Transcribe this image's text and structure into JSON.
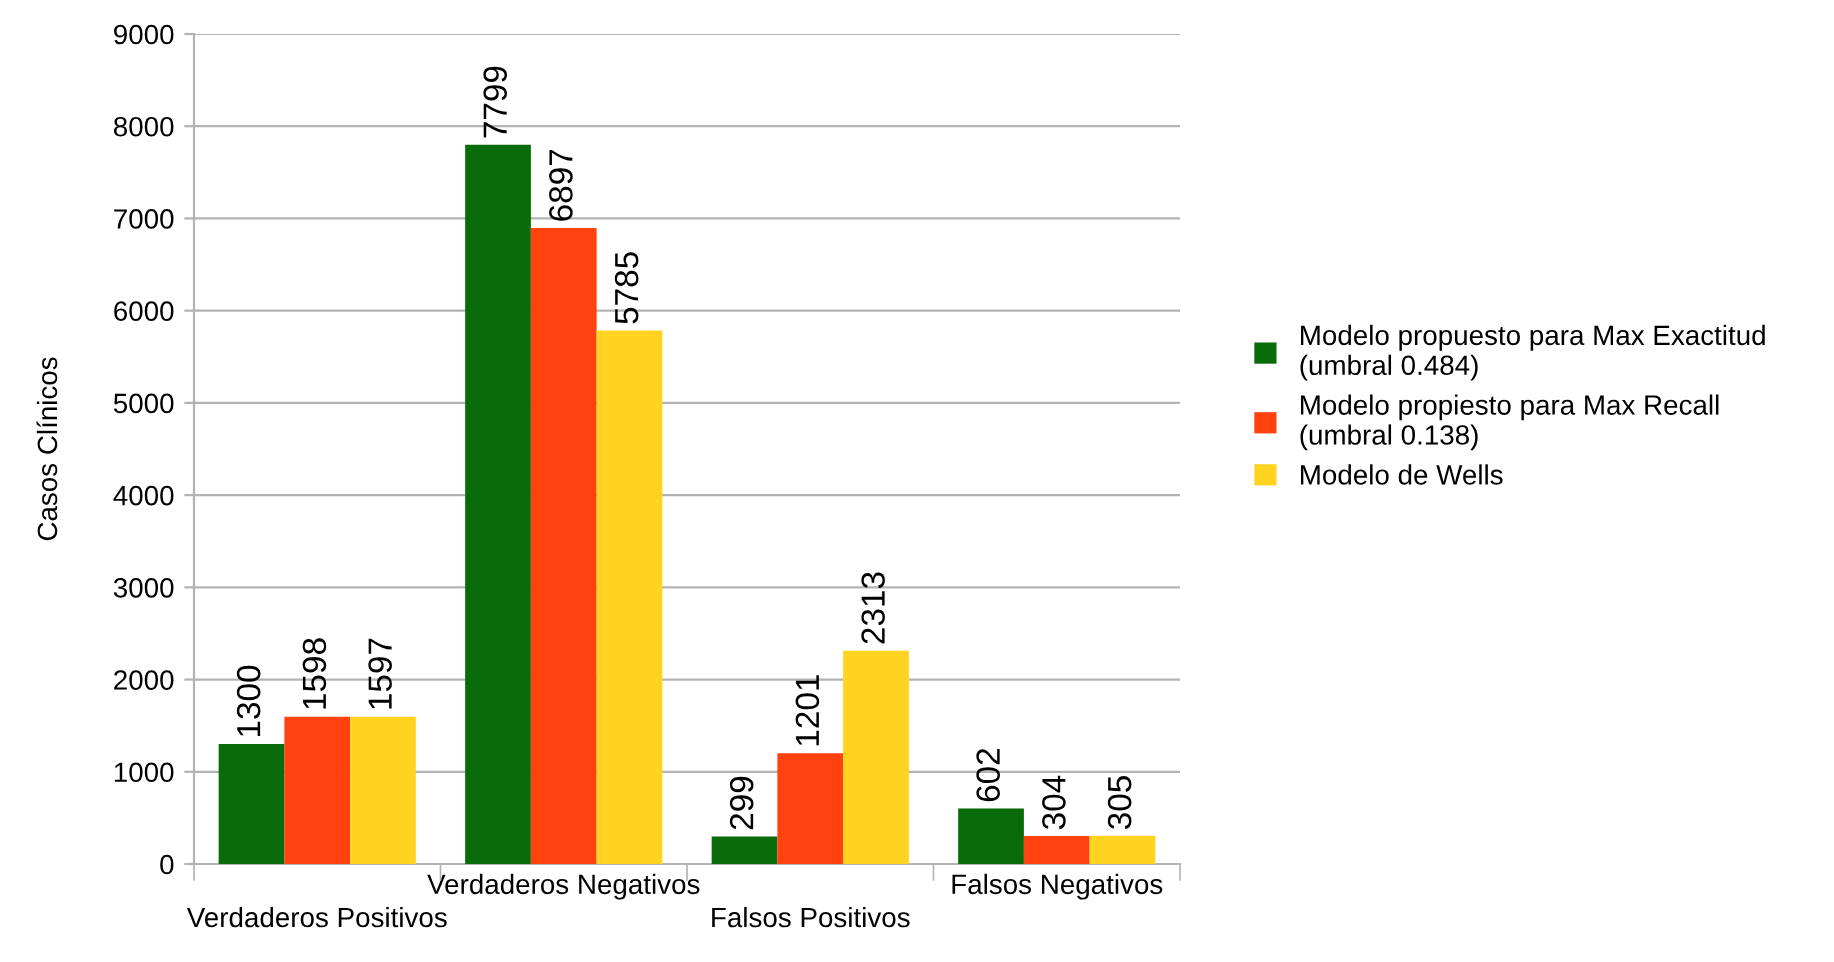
{
  "chart_data": {
    "type": "bar",
    "ylabel": "Casos Clínicos",
    "categories": [
      "Verdaderos Positivos",
      "Verdaderos Negativos",
      "Falsos Positivos",
      "Falsos Negativos"
    ],
    "series": [
      {
        "name": "Modelo propuesto para Max Exactitud\n(umbral 0.484)",
        "color": "#0a6b0a",
        "values": [
          1300,
          7799,
          299,
          602
        ]
      },
      {
        "name": "Modelo propiesto para Max Recall\n(umbral 0.138)",
        "color": "#ff420e",
        "values": [
          1598,
          6897,
          1201,
          304
        ]
      },
      {
        "name": "Modelo de Wells",
        "color": "#ffd320",
        "values": [
          1597,
          5785,
          2313,
          305
        ]
      }
    ],
    "ylim": [
      0,
      9000
    ],
    "yticks": [
      0,
      1000,
      2000,
      3000,
      4000,
      5000,
      6000,
      7000,
      8000,
      9000
    ],
    "grid": "y",
    "legend": "right",
    "data_labels": true
  }
}
